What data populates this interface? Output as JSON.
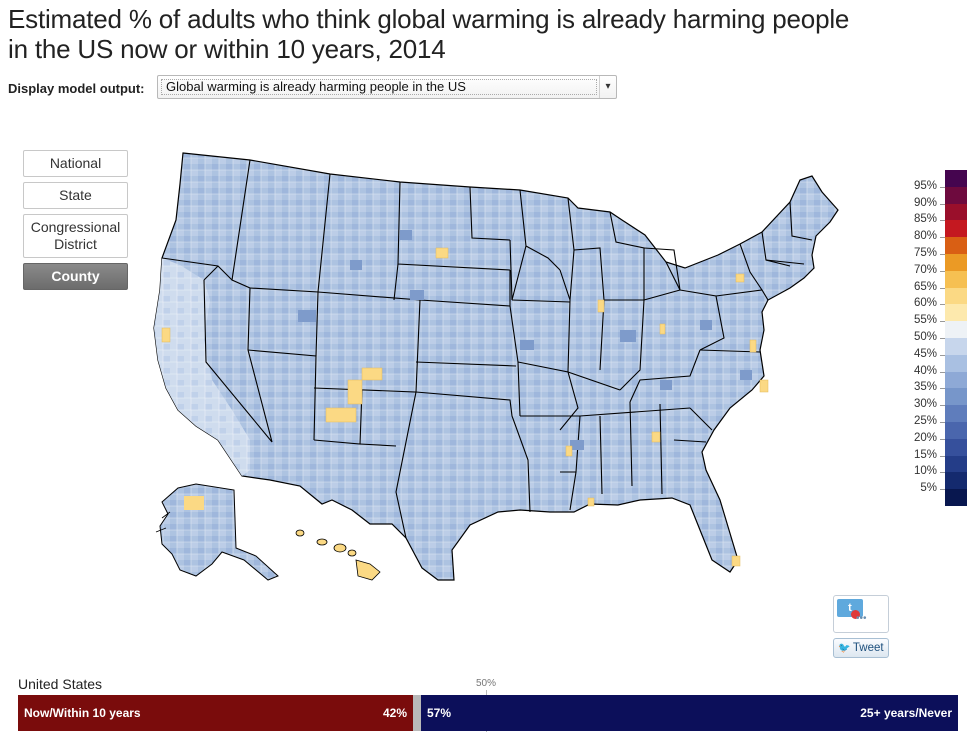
{
  "page": {
    "title_line1": "Estimated % of adults who think global warming is already harming people",
    "title_line2": "in the US now or within 10 years, 2014"
  },
  "controls": {
    "label": "Display model output:",
    "selected": "Global warming is already harming people in the US",
    "arrow": "▾"
  },
  "geo_levels": [
    {
      "label": "National",
      "active": false
    },
    {
      "label": "State",
      "active": false
    },
    {
      "label": "Congressional District",
      "active": false
    },
    {
      "label": "County",
      "active": true
    }
  ],
  "legend": {
    "labels": [
      "95%",
      "90%",
      "85%",
      "80%",
      "75%",
      "70%",
      "65%",
      "60%",
      "55%",
      "50%",
      "45%",
      "40%",
      "35%",
      "30%",
      "25%",
      "20%",
      "15%",
      "10%",
      "5%"
    ],
    "colors": [
      "#45054f",
      "#6e0a3e",
      "#9a0f2b",
      "#c41820",
      "#d95f14",
      "#eb9a25",
      "#f6c052",
      "#fbd984",
      "#fde9ad",
      "#eef2f6",
      "#c7d6ec",
      "#a9c0e2",
      "#8ea9d6",
      "#7796ca",
      "#5f7dbc",
      "#4a66ad",
      "#36509c",
      "#243d88",
      "#142a6e",
      "#08174f"
    ]
  },
  "map": {
    "colors": {
      "base": "#adc3e1",
      "light": "#d3e0f0",
      "dark": "#7e9bcb",
      "darker": "#6a88c0",
      "yellow": "#fbd984",
      "state_border": "#000000"
    },
    "regions": [
      "Alaska",
      "Hawaii"
    ]
  },
  "share": {
    "count": "t",
    "dots": "•••",
    "bird": "🐦",
    "tweet_label": "Tweet"
  },
  "summary": {
    "region": "United States",
    "midpoint": "50%",
    "left_label": "Now/Within 10 years",
    "left_value": "42%",
    "right_value": "57%",
    "right_label": "25+ years/Never"
  }
}
